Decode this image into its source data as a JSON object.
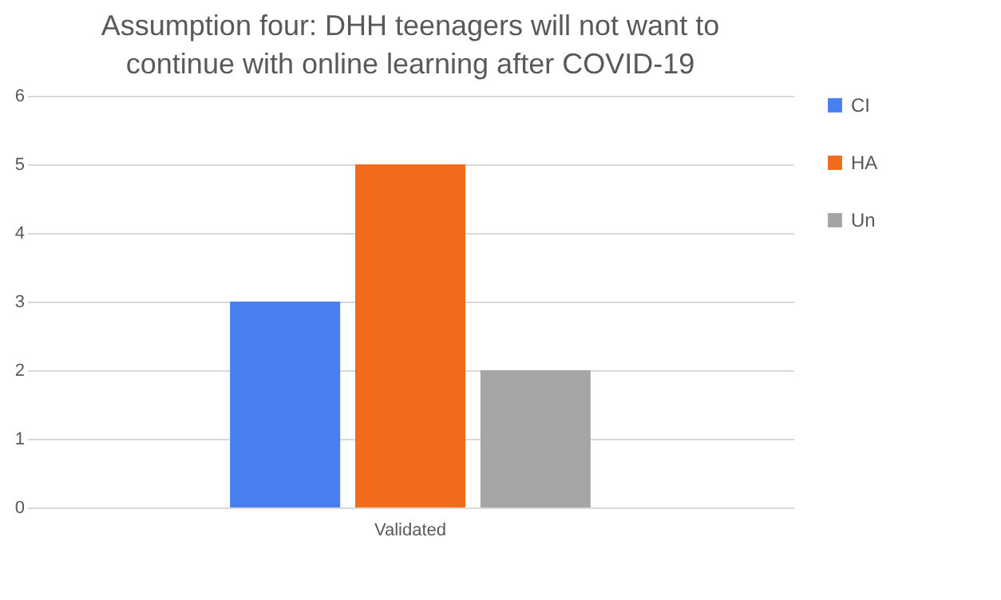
{
  "chart_data": {
    "type": "bar",
    "title": "Assumption four: DHH teenagers will not want to continue with online learning after COVID-19",
    "categories": [
      "Validated"
    ],
    "series": [
      {
        "name": "CI",
        "color": "#4a7ff0",
        "values": [
          3
        ]
      },
      {
        "name": "HA",
        "color": "#f26b1d",
        "values": [
          5
        ]
      },
      {
        "name": "Un",
        "color": "#a5a5a5",
        "values": [
          2
        ]
      }
    ],
    "ylim": [
      0,
      6
    ],
    "yticks": [
      0,
      1,
      2,
      3,
      4,
      5,
      6
    ],
    "grid": "y",
    "legend": "right"
  }
}
